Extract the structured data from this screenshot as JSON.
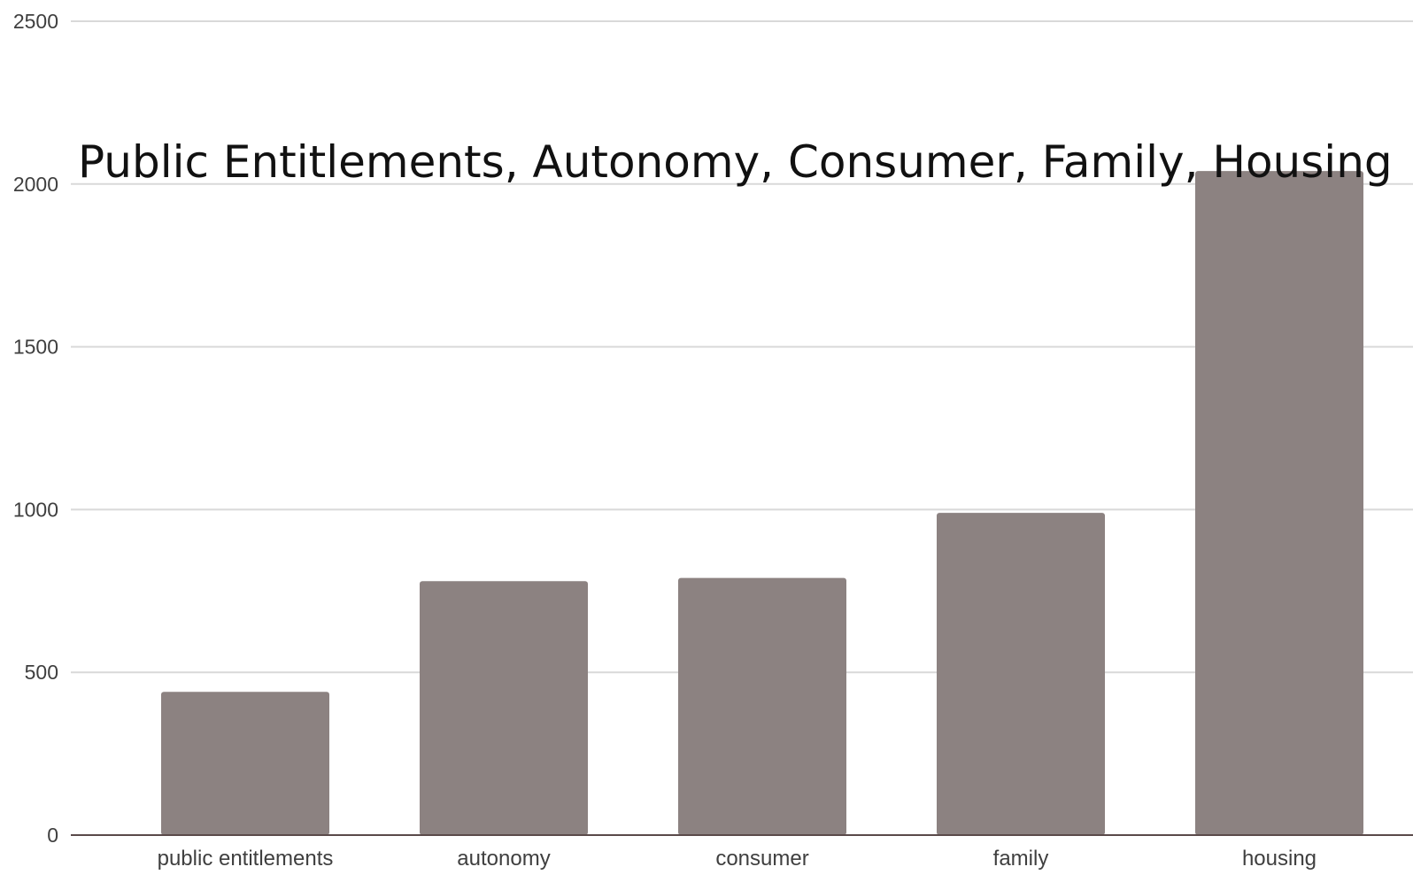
{
  "chart_data": {
    "type": "bar",
    "title": "Public Entitlements, Autonomy, Consumer, Family, Housing",
    "categories": [
      "public entitlements",
      "autonomy",
      "consumer",
      "family",
      "housing"
    ],
    "values": [
      440,
      780,
      790,
      990,
      2040
    ],
    "yticks": [
      "0",
      "500",
      "1000",
      "1500",
      "2000",
      "2500"
    ],
    "ylim": [
      0,
      2500
    ],
    "grid": true,
    "colors": {
      "bar": "#8c8281",
      "grid": "#d9d9d9",
      "axis": "#5a4a4a"
    }
  }
}
